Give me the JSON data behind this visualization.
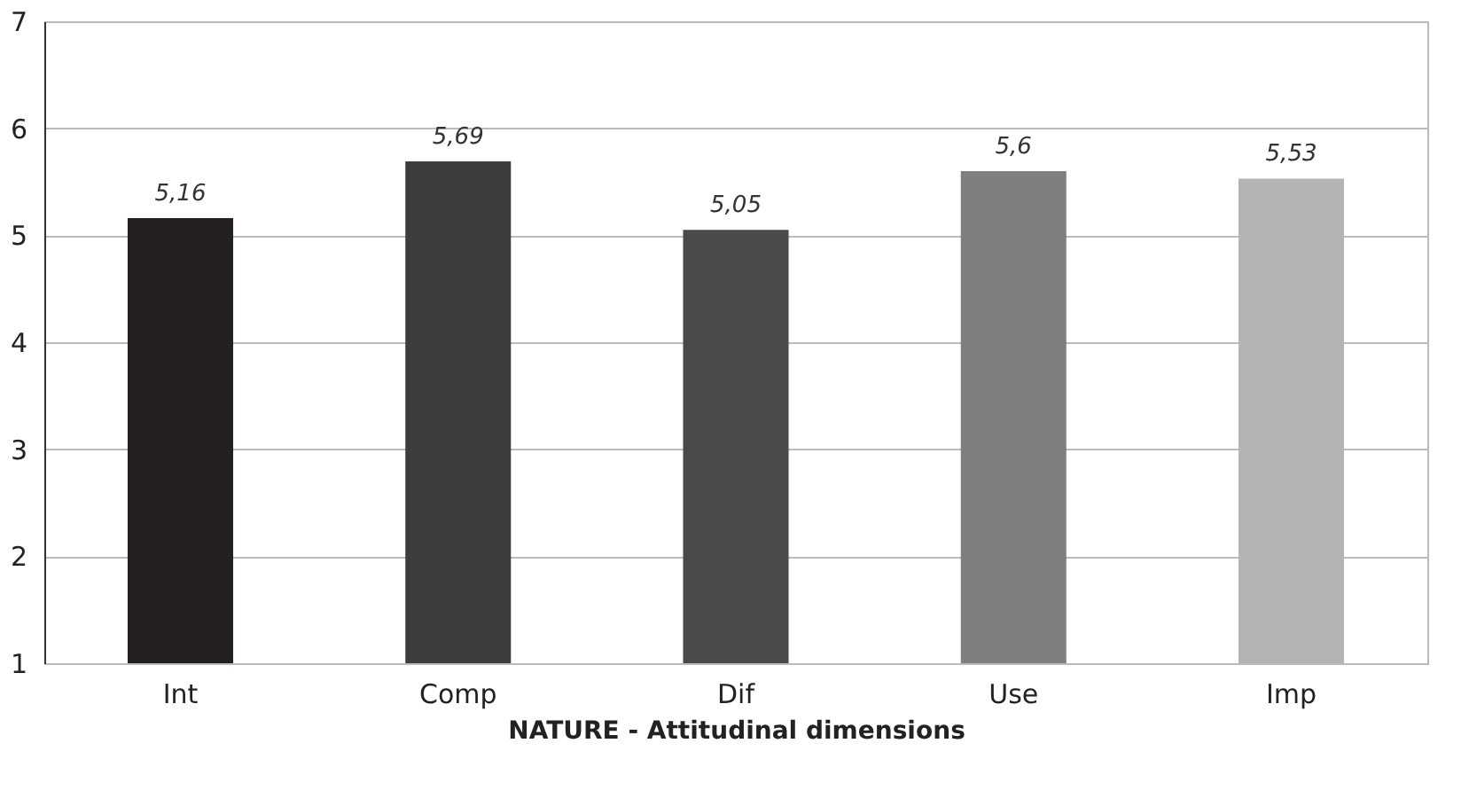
{
  "chart_data": {
    "type": "bar",
    "categories": [
      "Int",
      "Comp",
      "Dif",
      "Use",
      "Imp"
    ],
    "values": [
      5.16,
      5.69,
      5.05,
      5.6,
      5.53
    ],
    "value_labels": [
      "5,16",
      "5,69",
      "5,05",
      "5,6",
      "5,53"
    ],
    "colors": [
      "#231f20",
      "#3d3d3d",
      "#4a4a4a",
      "#7f7f7f",
      "#b4b4b4"
    ],
    "xlabel": "NATURE - Attitudinal dimensions",
    "ylim": [
      1,
      7
    ],
    "yticks": [
      1,
      2,
      3,
      4,
      5,
      6,
      7
    ],
    "grid": "y"
  }
}
